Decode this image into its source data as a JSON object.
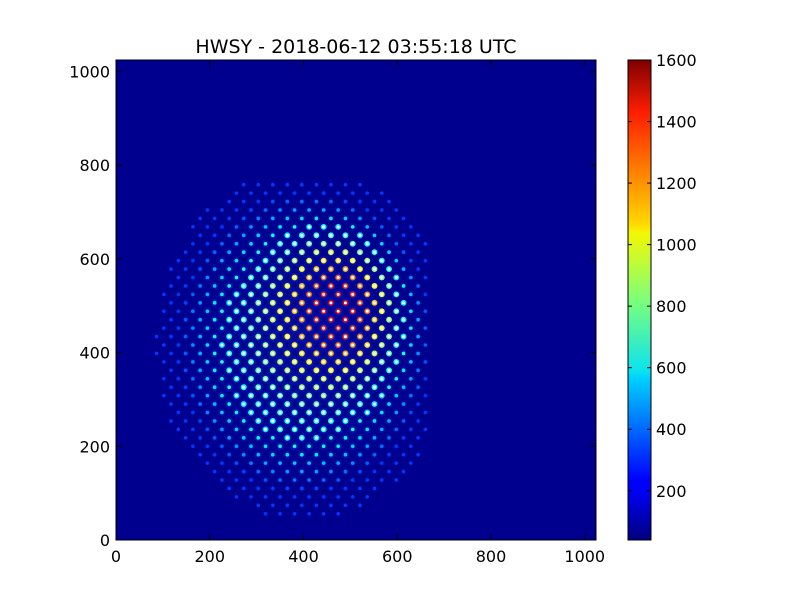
{
  "chart_data": {
    "type": "heatmap",
    "title": "HWSY - 2018-06-12 03:55:18 UTC",
    "xlabel": "",
    "ylabel": "",
    "xlim": [
      0,
      1024
    ],
    "ylim": [
      0,
      1024
    ],
    "x_ticks": [
      0,
      200,
      400,
      600,
      800,
      1000
    ],
    "y_ticks": [
      0,
      200,
      400,
      600,
      800,
      1000
    ],
    "colormap": "jet",
    "background_value": 40,
    "colorbar": {
      "range": [
        40,
        1600
      ],
      "ticks": [
        200,
        400,
        600,
        800,
        1000,
        1200,
        1400,
        1600
      ]
    },
    "spot_pattern": {
      "description": "hexagonal lattice of bright spots",
      "center": [
        400,
        420
      ],
      "row_spacing": 18,
      "column_spacing": 31,
      "extent": {
        "x": [
          40,
          660
        ],
        "y": [
          20,
          760
        ]
      },
      "brightest_region_center": [
        500,
        520
      ],
      "peak_value": 1600
    },
    "colors": {
      "background": "#00008f",
      "axis": "#000000",
      "figure_background": "#ffffff"
    }
  }
}
